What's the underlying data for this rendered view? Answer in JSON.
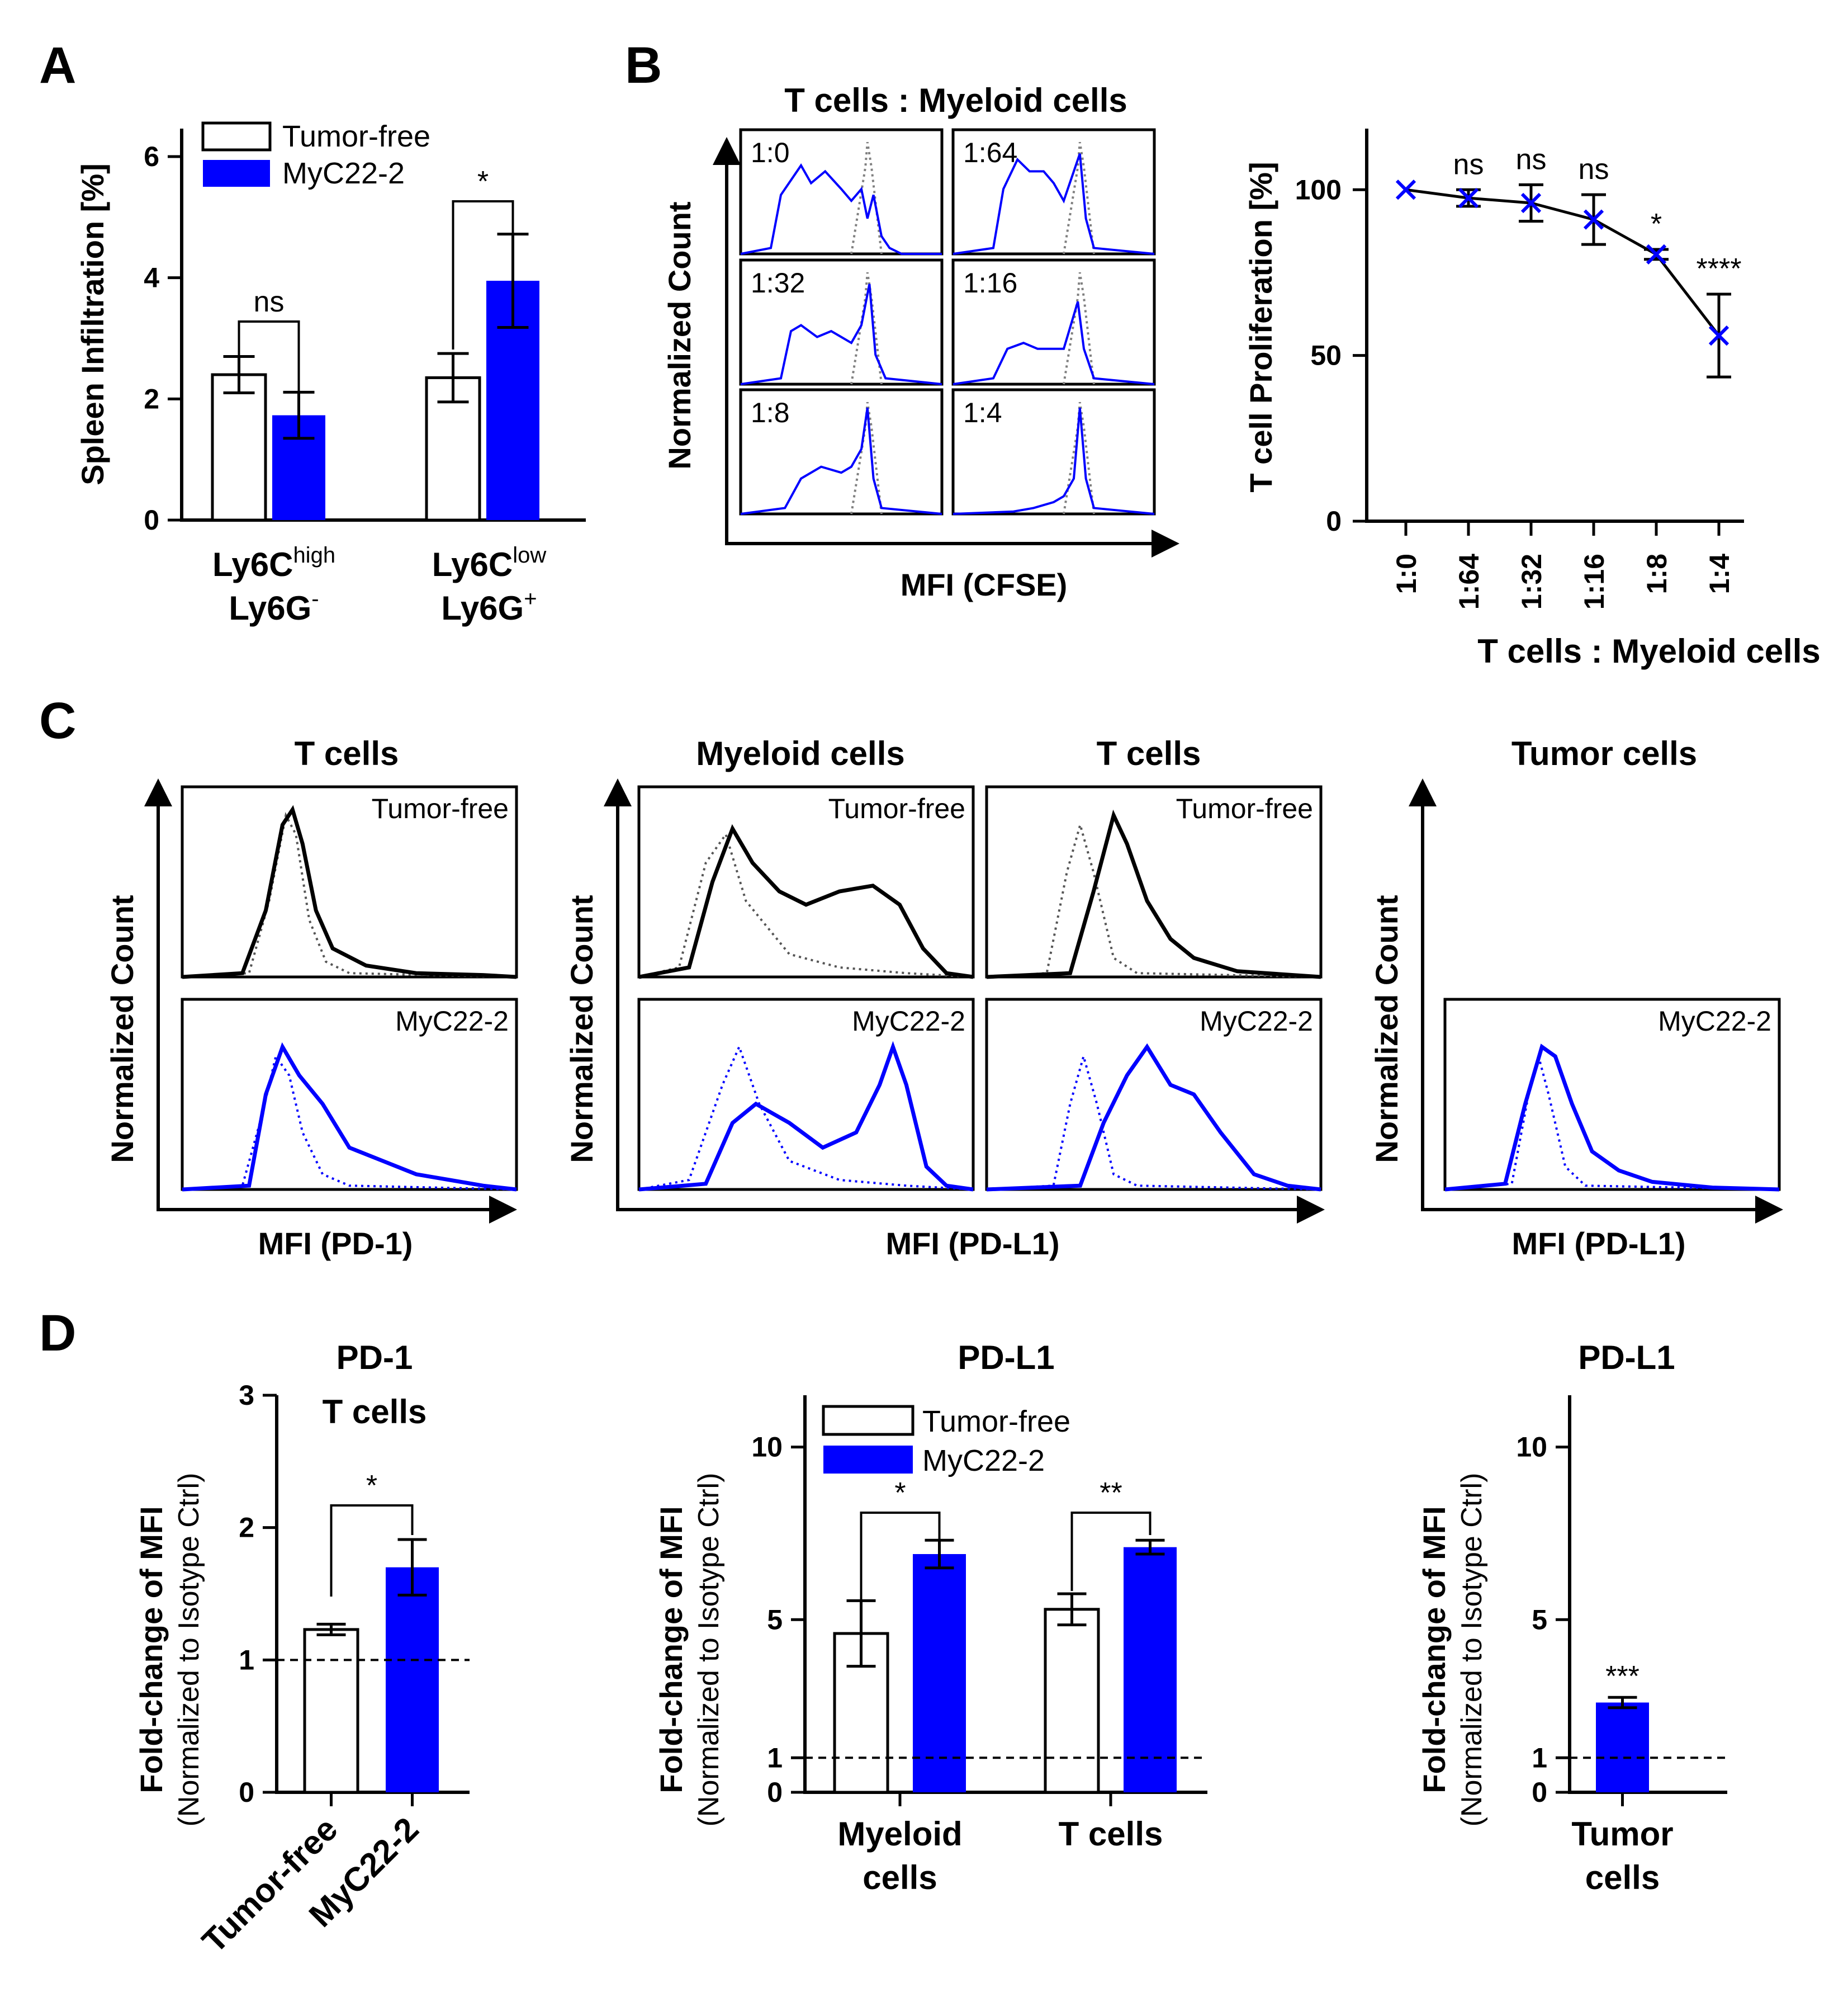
{
  "colors": {
    "blue": "#0000ff",
    "black": "#000000",
    "white": "#ffffff",
    "gray": "#808080"
  },
  "panel_labels": [
    "A",
    "B",
    "C",
    "D"
  ],
  "legend": {
    "tumor_free": "Tumor-free",
    "myc": "MyC22-2"
  },
  "arrow_axes": {
    "b_y": "Normalized Count",
    "b_x": "MFI (CFSE)",
    "c_y": "Normalized Count",
    "c_x_pd1": "MFI (PD-1)",
    "c_x_pdl1": "MFI (PD-L1)"
  },
  "panel_a_cats": [
    {
      "pre": "Ly6C",
      "sup": "high",
      "line2": "Ly6G",
      "sup2": "-"
    },
    {
      "pre": "Ly6C",
      "sup": "low",
      "line2": "Ly6G",
      "sup2": "+"
    }
  ],
  "panel_b": {
    "title": "T cells : Myeloid cells",
    "histograms": [
      "1:0",
      "1:64",
      "1:32",
      "1:16",
      "1:8",
      "1:4"
    ]
  },
  "panel_c": {
    "titles": [
      "T cells",
      "Myeloid cells",
      "T cells",
      "Tumor cells"
    ],
    "tumor_free": "Tumor-free",
    "myc": "MyC22-2"
  },
  "panel_d_titles": {
    "d1_line1": "PD-1",
    "d1_line2": "T cells",
    "d2": "PD-L1",
    "d3": "PD-L1"
  },
  "panel_d_ylabels": {
    "main": "Fold-change of MFI",
    "sub": "(Normalized to Isotype Ctrl)"
  },
  "chart_data": [
    {
      "id": "A",
      "type": "bar",
      "ylabel": "Spleen Infiltration [%]",
      "ylim": [
        0,
        6
      ],
      "yticks": [
        0,
        2,
        4,
        6
      ],
      "categories": [
        "Ly6Chigh Ly6G-",
        "Ly6Clow Ly6G+"
      ],
      "series": [
        {
          "name": "Tumor-free",
          "values": [
            2.4,
            2.35
          ],
          "errors": [
            0.3,
            0.4
          ]
        },
        {
          "name": "MyC22-2",
          "values": [
            1.73,
            3.95
          ],
          "errors": [
            0.38,
            0.77
          ]
        }
      ],
      "significance": [
        "ns",
        "*"
      ]
    },
    {
      "id": "B",
      "type": "line",
      "ylabel": "T cell Proliferation [%]",
      "xlabel": "T cells : Myeloid cells",
      "ylim": [
        0,
        110
      ],
      "yticks": [
        0,
        50,
        100
      ],
      "categories": [
        "1:0",
        "1:64",
        "1:32",
        "1:16",
        "1:8",
        "1:4"
      ],
      "values": [
        100,
        97.5,
        96,
        91,
        80.5,
        56
      ],
      "errors": [
        0,
        2.5,
        5.5,
        7.5,
        1.5,
        12.5
      ],
      "significance": [
        "",
        "ns",
        "ns",
        "ns",
        "*",
        "****"
      ]
    },
    {
      "id": "D1",
      "type": "bar",
      "ylim": [
        0,
        3
      ],
      "yticks": [
        0,
        1,
        2,
        3
      ],
      "reference_line": 1,
      "categories": [
        "Tumor-free",
        "MyC22-2"
      ],
      "values": [
        1.23,
        1.7
      ],
      "errors": [
        0.04,
        0.21
      ],
      "significance": [
        "*"
      ]
    },
    {
      "id": "D2",
      "type": "bar",
      "ylim": [
        0,
        11.5
      ],
      "yticks": [
        0,
        1,
        5,
        10
      ],
      "reference_line": 1,
      "categories": [
        "Myeloid cells",
        "T cells"
      ],
      "series": [
        {
          "name": "Tumor-free",
          "values": [
            4.6,
            5.3
          ],
          "errors": [
            0.95,
            0.45
          ]
        },
        {
          "name": "MyC22-2",
          "values": [
            6.9,
            7.1
          ],
          "errors": [
            0.4,
            0.2
          ]
        }
      ],
      "significance": [
        "*",
        "**"
      ]
    },
    {
      "id": "D3",
      "type": "bar",
      "ylim": [
        0,
        11.5
      ],
      "yticks": [
        0,
        1,
        5,
        10
      ],
      "reference_line": 1,
      "categories": [
        "Tumor cells"
      ],
      "values": [
        2.6
      ],
      "errors": [
        0.15
      ],
      "significance": [
        "***"
      ]
    }
  ]
}
